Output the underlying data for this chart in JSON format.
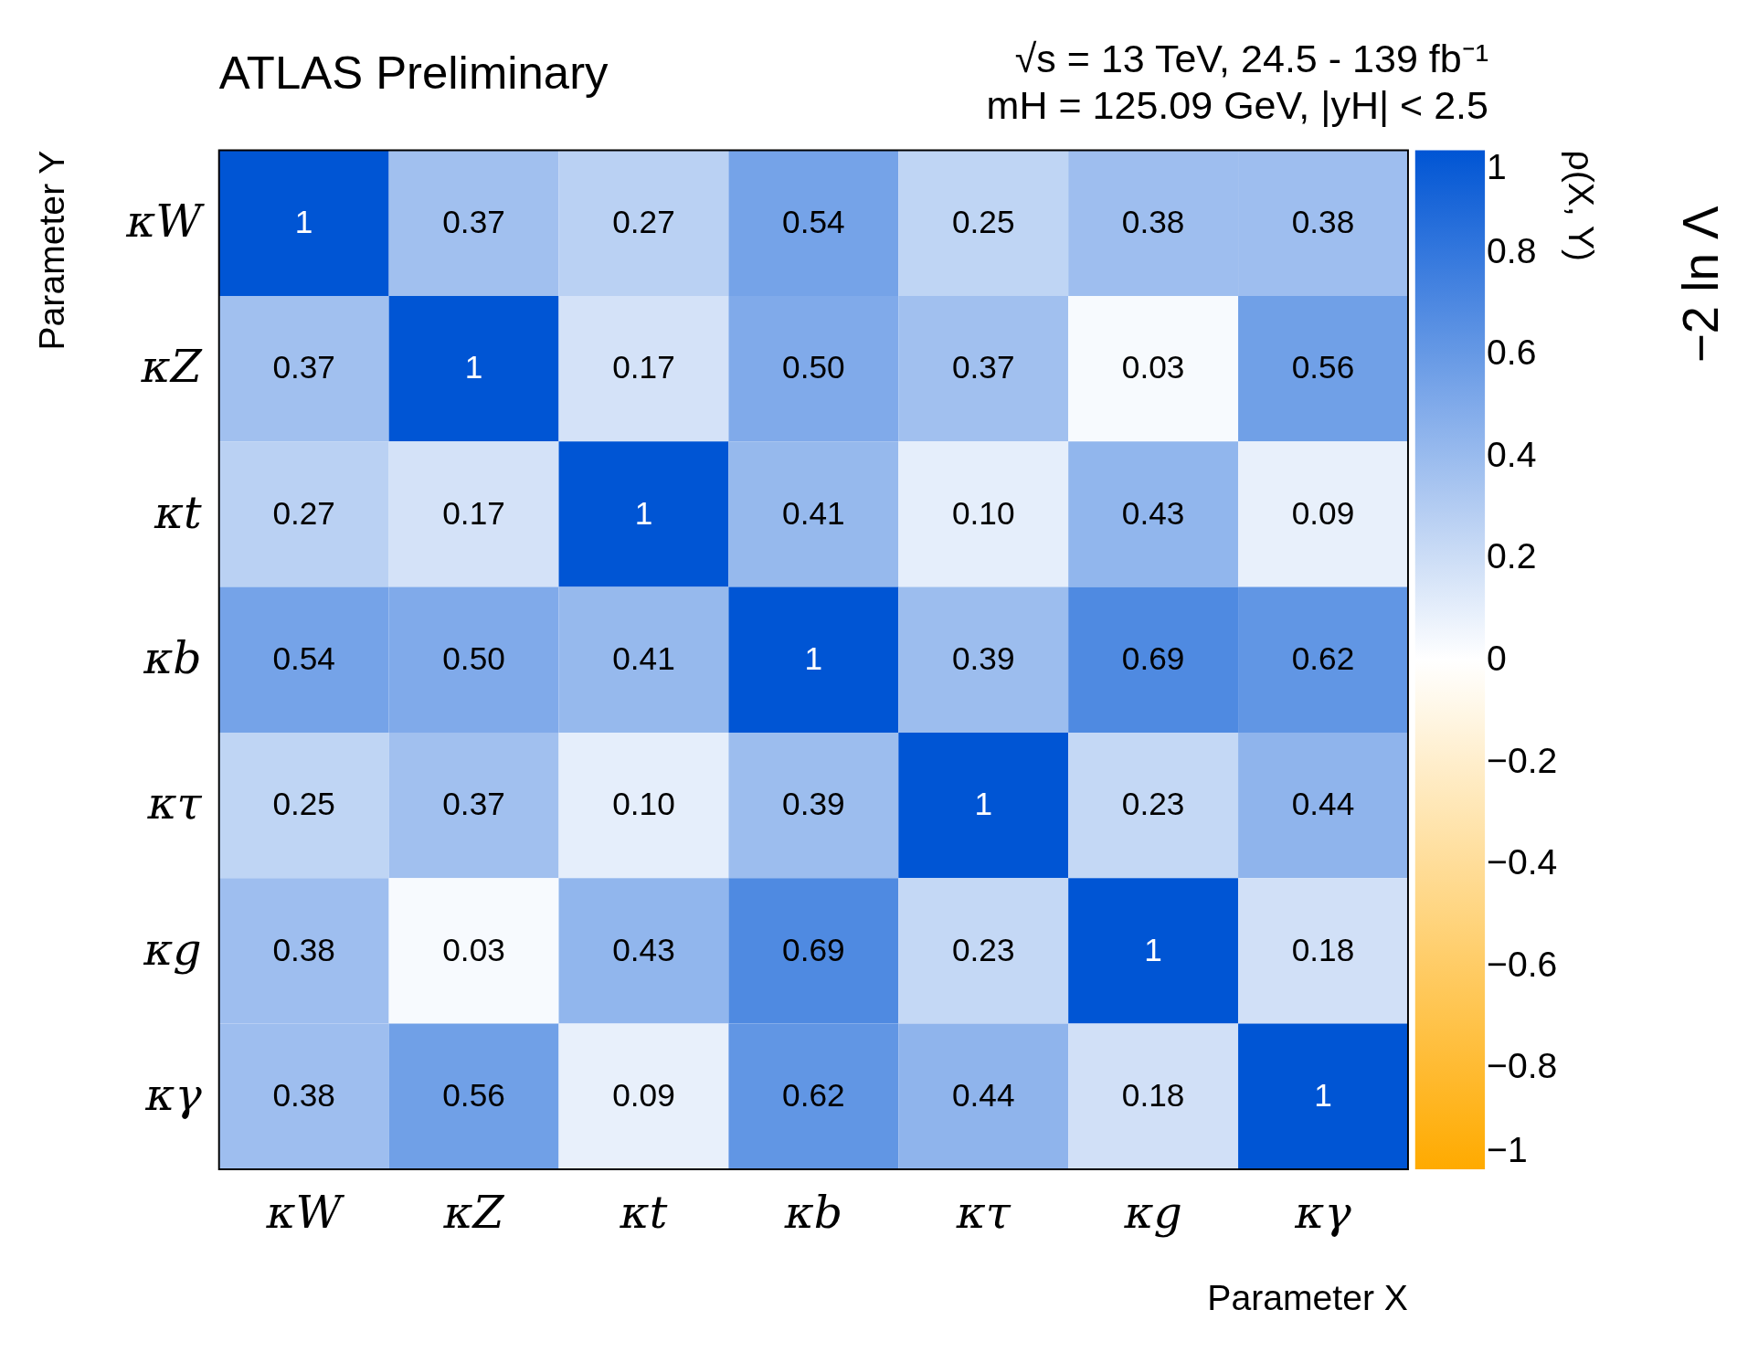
{
  "chart_data": {
    "type": "heatmap",
    "title": "ATLAS Preliminary",
    "subtitle": [
      "√s = 13 TeV, 24.5 - 139 fb⁻¹",
      "mH = 125.09 GeV, |yH| < 2.5"
    ],
    "xlabel": "Parameter X",
    "ylabel": "Parameter Y",
    "clabel": "ρ(X, Y)",
    "annotations": [
      "−2 ln Λ"
    ],
    "categories": [
      "κW",
      "κZ",
      "κt",
      "κb",
      "κτ",
      "κg",
      "κγ"
    ],
    "y_categories": [
      "κW",
      "κZ",
      "κt",
      "κb",
      "κτ",
      "κg",
      "κγ"
    ],
    "cells": [
      [
        1,
        0.37,
        0.27,
        0.54,
        0.25,
        0.38,
        0.38
      ],
      [
        0.37,
        1,
        0.17,
        0.5,
        0.37,
        0.03,
        0.56
      ],
      [
        0.27,
        0.17,
        1,
        0.41,
        0.1,
        0.43,
        0.09
      ],
      [
        0.54,
        0.5,
        0.41,
        1,
        0.39,
        0.69,
        0.62
      ],
      [
        0.25,
        0.37,
        0.1,
        0.39,
        1,
        0.23,
        0.44
      ],
      [
        0.38,
        0.03,
        0.43,
        0.69,
        0.23,
        1,
        0.18
      ],
      [
        0.38,
        0.56,
        0.09,
        0.62,
        0.44,
        0.18,
        1
      ]
    ],
    "cell_labels": [
      [
        "1",
        "0.37",
        "0.27",
        "0.54",
        "0.25",
        "0.38",
        "0.38"
      ],
      [
        "0.37",
        "1",
        "0.17",
        "0.50",
        "0.37",
        "0.03",
        "0.56"
      ],
      [
        "0.27",
        "0.17",
        "1",
        "0.41",
        "0.10",
        "0.43",
        "0.09"
      ],
      [
        "0.54",
        "0.50",
        "0.41",
        "1",
        "0.39",
        "0.69",
        "0.62"
      ],
      [
        "0.25",
        "0.37",
        "0.10",
        "0.39",
        "1",
        "0.23",
        "0.44"
      ],
      [
        "0.38",
        "0.03",
        "0.43",
        "0.69",
        "0.23",
        "1",
        "0.18"
      ],
      [
        "0.38",
        "0.56",
        "0.09",
        "0.62",
        "0.44",
        "0.18",
        "1"
      ]
    ],
    "clim": [
      -1,
      1
    ],
    "cticks": [
      -1,
      -0.8,
      -0.6,
      -0.4,
      -0.2,
      0,
      0.2,
      0.4,
      0.6,
      0.8,
      1
    ],
    "colors": [
      "#ffaa00",
      "#ffffff",
      "#0055d4"
    ]
  }
}
